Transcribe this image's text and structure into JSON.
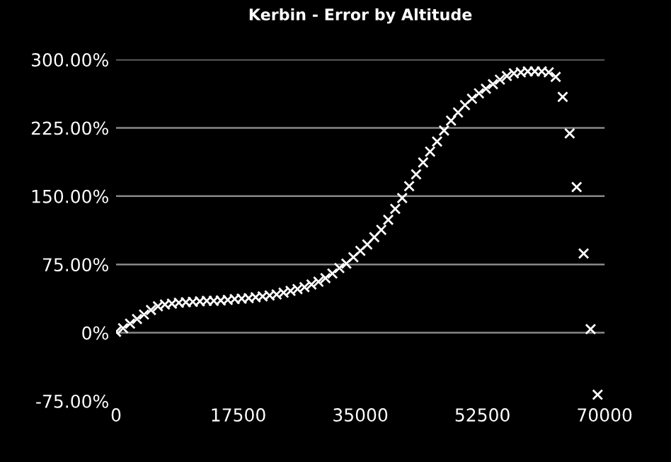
{
  "chart_data": {
    "type": "scatter",
    "title": "Kerbin - Error by Altitude",
    "x": [
      0,
      1000,
      2000,
      3000,
      4000,
      5000,
      6000,
      7000,
      8000,
      9000,
      10000,
      11000,
      12000,
      13000,
      14000,
      15000,
      16000,
      17000,
      18000,
      19000,
      20000,
      21000,
      22000,
      23000,
      24000,
      25000,
      26000,
      27000,
      28000,
      29000,
      30000,
      31000,
      32000,
      33000,
      34000,
      35000,
      36000,
      37000,
      38000,
      39000,
      40000,
      41000,
      42000,
      43000,
      44000,
      45000,
      46000,
      47000,
      48000,
      49000,
      50000,
      51000,
      52000,
      53000,
      54000,
      55000,
      56000,
      57000,
      58000,
      59000,
      60000,
      61000,
      62000,
      63000,
      64000,
      65000,
      66000,
      67000,
      68000,
      69000
    ],
    "values": [
      1,
      5,
      10,
      15,
      20,
      25,
      29,
      31,
      32,
      33,
      33.5,
      34,
      34.5,
      35,
      35,
      35.5,
      36,
      37,
      37.5,
      38,
      39,
      40,
      41,
      42,
      44,
      46,
      48,
      50,
      53,
      56,
      60,
      65,
      71,
      76,
      83,
      90,
      97,
      105,
      113,
      124,
      136,
      148,
      161,
      174,
      187,
      199,
      210,
      222,
      233,
      242,
      250,
      257,
      263,
      268,
      273,
      278,
      282,
      285,
      286,
      287,
      287,
      287,
      286,
      281,
      259,
      219,
      160,
      87,
      4,
      -68
    ],
    "color": "#ffffff",
    "marker": "cross",
    "xlim": [
      0,
      70000
    ],
    "xticks": [
      0,
      17500,
      35000,
      52500,
      70000
    ],
    "ylim": [
      -75,
      300
    ],
    "yticks": [
      {
        "value": -75,
        "label": "-75.00%"
      },
      {
        "value": 0,
        "label": "0%"
      },
      {
        "value": 75,
        "label": "75.00%"
      },
      {
        "value": 150,
        "label": "150.00%"
      },
      {
        "value": 225,
        "label": "225.00%"
      },
      {
        "value": 300,
        "label": "300.00%"
      }
    ],
    "grid": "y"
  }
}
